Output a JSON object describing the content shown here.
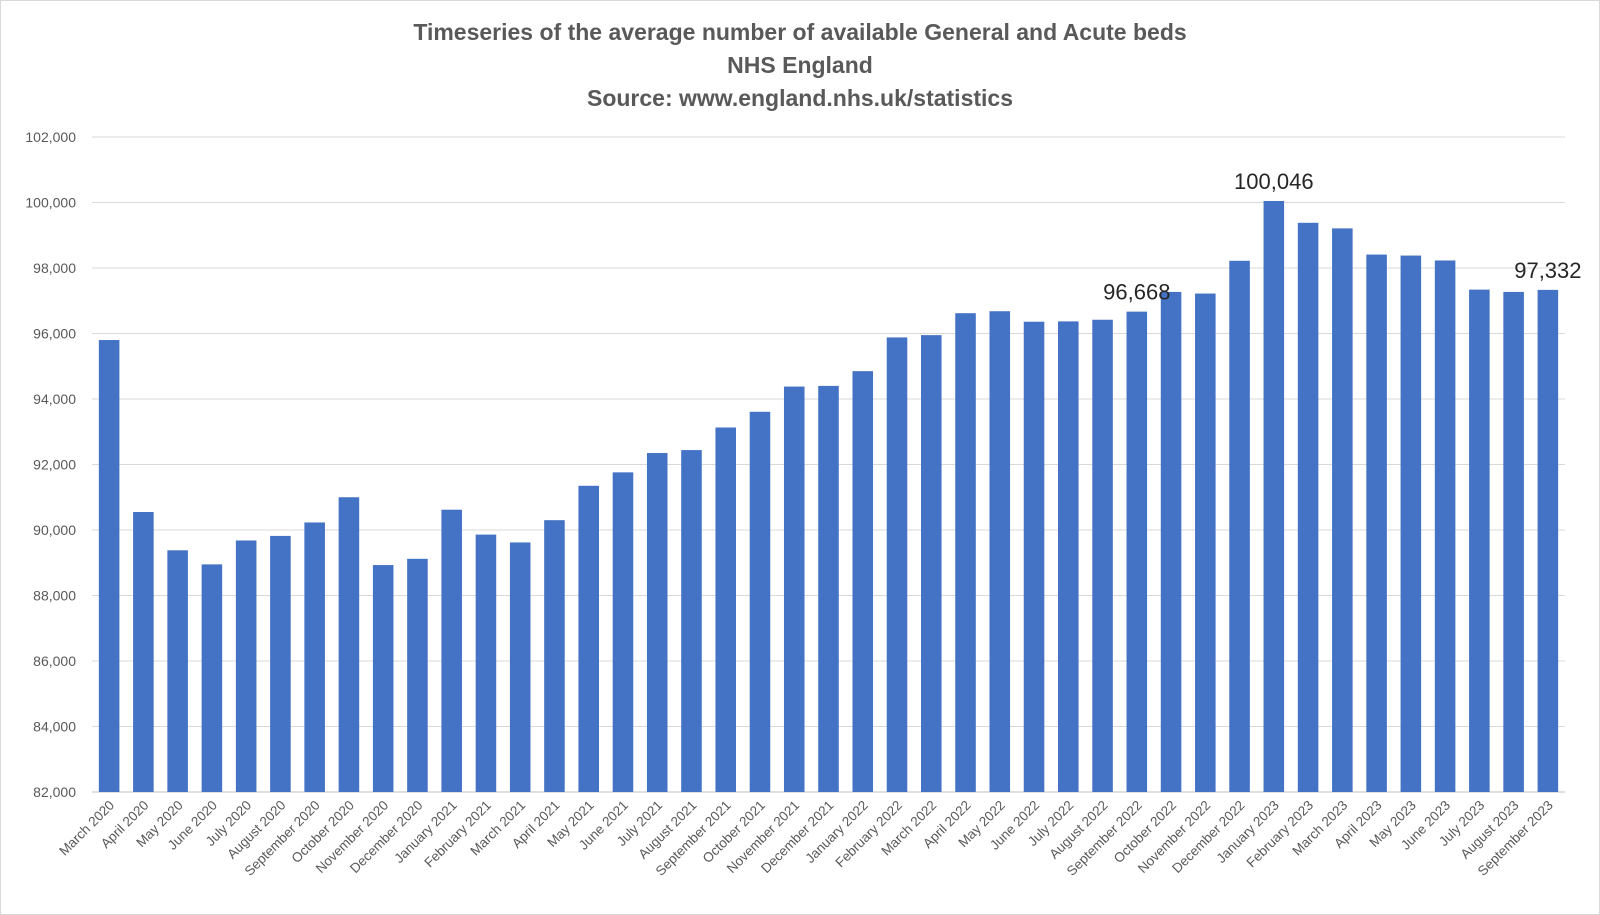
{
  "chart_data": {
    "type": "bar",
    "title": "Timeseries of the average number of available General and Acute beds",
    "subtitle": "NHS England",
    "source": "Source: www.england.nhs.uk/statistics",
    "xlabel": "",
    "ylabel": "",
    "ylim": [
      82000,
      102000
    ],
    "yticks": [
      82000,
      84000,
      86000,
      88000,
      90000,
      92000,
      94000,
      96000,
      98000,
      100000,
      102000
    ],
    "ytick_labels": [
      "82,000",
      "84,000",
      "86,000",
      "88,000",
      "90,000",
      "92,000",
      "94,000",
      "96,000",
      "98,000",
      "100,000",
      "102,000"
    ],
    "grid": true,
    "legend": "none",
    "bar_color": "#4472C4",
    "categories": [
      "March 2020",
      "April 2020",
      "May 2020",
      "June 2020",
      "July 2020",
      "August 2020",
      "September 2020",
      "October 2020",
      "November 2020",
      "December 2020",
      "January 2021",
      "February 2021",
      "March 2021",
      "April 2021",
      "May 2021",
      "June 2021",
      "July 2021",
      "August 2021",
      "September 2021",
      "October 2021",
      "November 2021",
      "December 2021",
      "January 2022",
      "February 2022",
      "March 2022",
      "April 2022",
      "May 2022",
      "June 2022",
      "July 2022",
      "August 2022",
      "September 2022",
      "October 2022",
      "November 2022",
      "December 2022",
      "January 2023",
      "February 2023",
      "March 2023",
      "April 2023",
      "May 2023",
      "June 2023",
      "July 2023",
      "August 2023",
      "September 2023"
    ],
    "values": [
      95800,
      90550,
      89380,
      88950,
      89680,
      89820,
      90230,
      91000,
      88930,
      89120,
      90620,
      89860,
      89620,
      90300,
      91350,
      91760,
      92350,
      92440,
      93130,
      93610,
      94380,
      94400,
      94850,
      95880,
      95950,
      96620,
      96680,
      96360,
      96370,
      96420,
      96668,
      97270,
      97220,
      98220,
      100046,
      99380,
      99210,
      98410,
      98380,
      98230,
      97340,
      97270,
      97332
    ],
    "data_labels": [
      {
        "category": "September 2022",
        "text": "96,668"
      },
      {
        "category": "January 2023",
        "text": "100,046"
      },
      {
        "category": "September 2023",
        "text": "97,332"
      }
    ]
  }
}
